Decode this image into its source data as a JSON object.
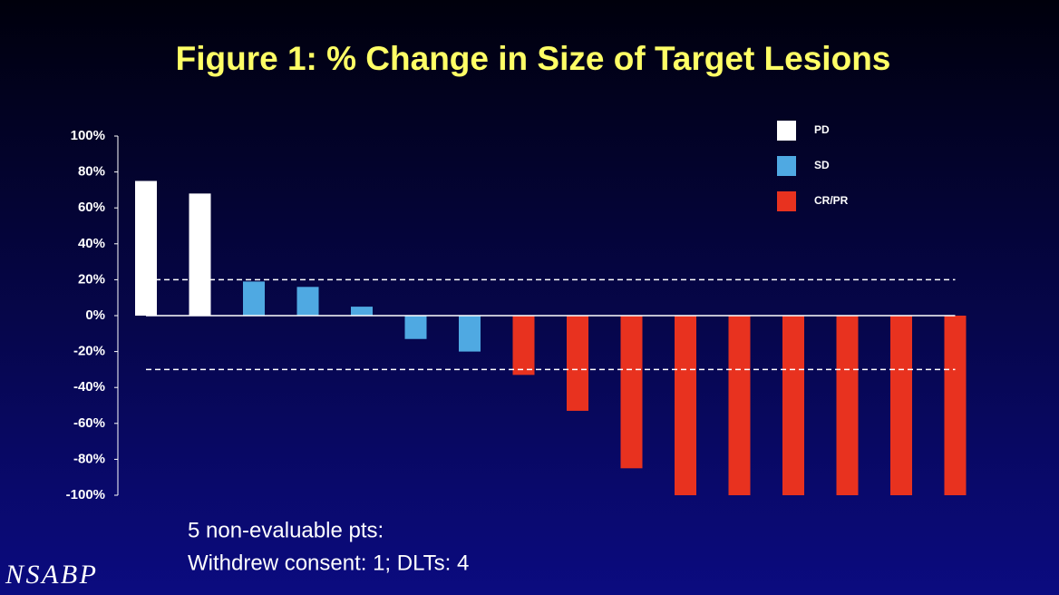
{
  "chart_data": {
    "type": "bar",
    "title": "Figure 1:  % Change in Size of Target Lesions",
    "categories": [
      null,
      null,
      null,
      null,
      null,
      null,
      null,
      null,
      null,
      null,
      null,
      null,
      null,
      null,
      null,
      null
    ],
    "series": [
      {
        "name": "PD",
        "color": "#ffffff",
        "values": [
          75,
          68,
          null,
          null,
          null,
          null,
          null,
          null,
          null,
          null,
          null,
          null,
          null,
          null,
          null,
          null
        ]
      },
      {
        "name": "SD",
        "color": "#4fa9e2",
        "values": [
          null,
          null,
          19,
          16,
          5,
          -13,
          -20,
          null,
          null,
          null,
          null,
          null,
          null,
          null,
          null,
          null
        ]
      },
      {
        "name": "CR/PR",
        "color": "#e8321f",
        "values": [
          null,
          null,
          null,
          null,
          null,
          null,
          null,
          -33,
          -53,
          -85,
          -100,
          -100,
          -100,
          -100,
          -100,
          -100
        ]
      }
    ],
    "ylim": [
      -100,
      100
    ],
    "yticks": [
      {
        "value": 100,
        "label": "100%"
      },
      {
        "value": 80,
        "label": "80%"
      },
      {
        "value": 60,
        "label": "60%"
      },
      {
        "value": 40,
        "label": "40%"
      },
      {
        "value": 20,
        "label": "20%"
      },
      {
        "value": 0,
        "label": "0%"
      },
      {
        "value": -20,
        "label": "-20%"
      },
      {
        "value": -40,
        "label": "-40%"
      },
      {
        "value": -60,
        "label": "-60%"
      },
      {
        "value": -80,
        "label": "-80%"
      },
      {
        "value": -100,
        "label": "-100%"
      }
    ],
    "reference_lines": [
      20,
      -30
    ],
    "grid": false
  },
  "footnote": [
    "5 non-evaluable pts:",
    "Withdrew consent: 1; DLTs: 4"
  ],
  "logo": "NSABP"
}
